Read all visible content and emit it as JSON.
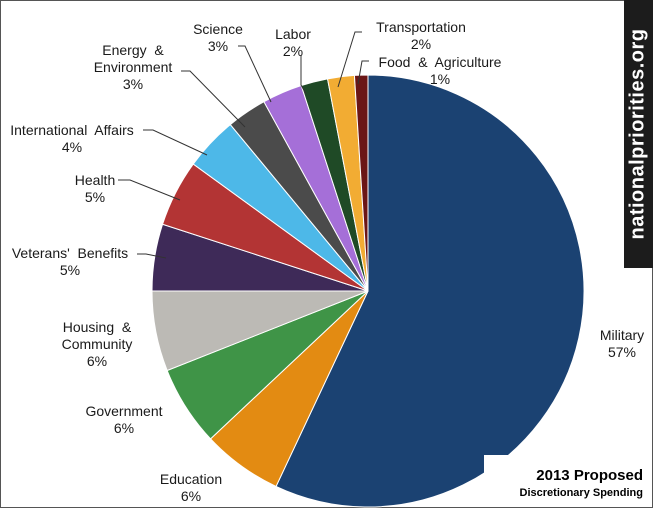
{
  "watermark": "nationalpriorities.org",
  "caption": {
    "title": "2013 Proposed",
    "subtitle": "Discretionary Spending"
  },
  "chart_data": {
    "type": "pie",
    "title": "",
    "categories": [
      "Military",
      "Education",
      "Government",
      "Housing & Community",
      "Veterans' Benefits",
      "Health",
      "International Affairs",
      "Energy & Environment",
      "Science",
      "Labor",
      "Transportation",
      "Food & Agriculture"
    ],
    "values": [
      57,
      6,
      6,
      6,
      5,
      5,
      4,
      3,
      3,
      2,
      2,
      1
    ],
    "colors": [
      "#1b4272",
      "#e38b12",
      "#3f9447",
      "#bcbab5",
      "#3e2a58",
      "#b33434",
      "#4db8e8",
      "#4b4b4b",
      "#a56fd8",
      "#1f4a26",
      "#f2ac33",
      "#6b1616"
    ],
    "labels": [
      {
        "lines": [
          "Military"
        ],
        "pct": "57%"
      },
      {
        "lines": [
          "Education"
        ],
        "pct": "6%"
      },
      {
        "lines": [
          "Government"
        ],
        "pct": "6%"
      },
      {
        "lines": [
          "Housing  &",
          "Community"
        ],
        "pct": "6%"
      },
      {
        "lines": [
          "Veterans'  Benefits"
        ],
        "pct": "5%"
      },
      {
        "lines": [
          "Health"
        ],
        "pct": "5%"
      },
      {
        "lines": [
          "International  Affairs"
        ],
        "pct": "4%"
      },
      {
        "lines": [
          "Energy  &",
          "Environment"
        ],
        "pct": "3%"
      },
      {
        "lines": [
          "Science"
        ],
        "pct": "3%"
      },
      {
        "lines": [
          "Labor"
        ],
        "pct": "2%"
      },
      {
        "lines": [
          "Transportation"
        ],
        "pct": "2%"
      },
      {
        "lines": [
          "Food  &  Agriculture"
        ],
        "pct": "1%"
      }
    ]
  }
}
